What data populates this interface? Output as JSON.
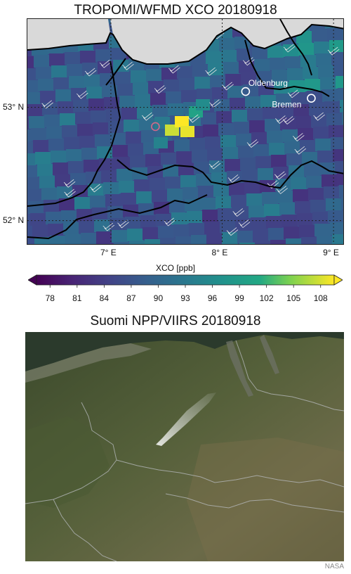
{
  "top_title": "TROPOMI/WFMD XCO 20180918",
  "bottom_title": "Suomi NPP/VIIRS 20180918",
  "credit": "NASA",
  "map": {
    "lat_labels": [
      {
        "text": "53° N",
        "lat": 53.0
      },
      {
        "text": "52° N",
        "lat": 52.0
      }
    ],
    "lon_labels": [
      {
        "text": "7° E",
        "lon": 7.0
      },
      {
        "text": "8° E",
        "lon": 8.0
      },
      {
        "text": "9° E",
        "lon": 9.0
      }
    ],
    "extent": {
      "lon_min": 6.25,
      "lon_max": 9.1,
      "lat_min": 51.78,
      "lat_max": 53.78
    },
    "cities": [
      {
        "name": "Oldenburg",
        "lon": 8.21,
        "lat": 53.14,
        "marker_color": "#ffffff"
      },
      {
        "name": "Bremen",
        "lon": 8.8,
        "lat": 53.08,
        "marker_color": "#ffffff"
      }
    ],
    "fire_marker": {
      "lon": 7.4,
      "lat": 52.83,
      "marker_color": "#d16a8a"
    }
  },
  "colorbar": {
    "label": "XCO [ppb]",
    "ticks": [
      "78",
      "81",
      "84",
      "87",
      "90",
      "93",
      "96",
      "99",
      "102",
      "105",
      "108"
    ],
    "min": 76.5,
    "max": 109.5,
    "colormap": "viridis"
  },
  "colors": {
    "land_mask": "#d9d9d9",
    "border": "#000000",
    "cbar_low": "#440154",
    "cbar_high": "#fde725"
  }
}
